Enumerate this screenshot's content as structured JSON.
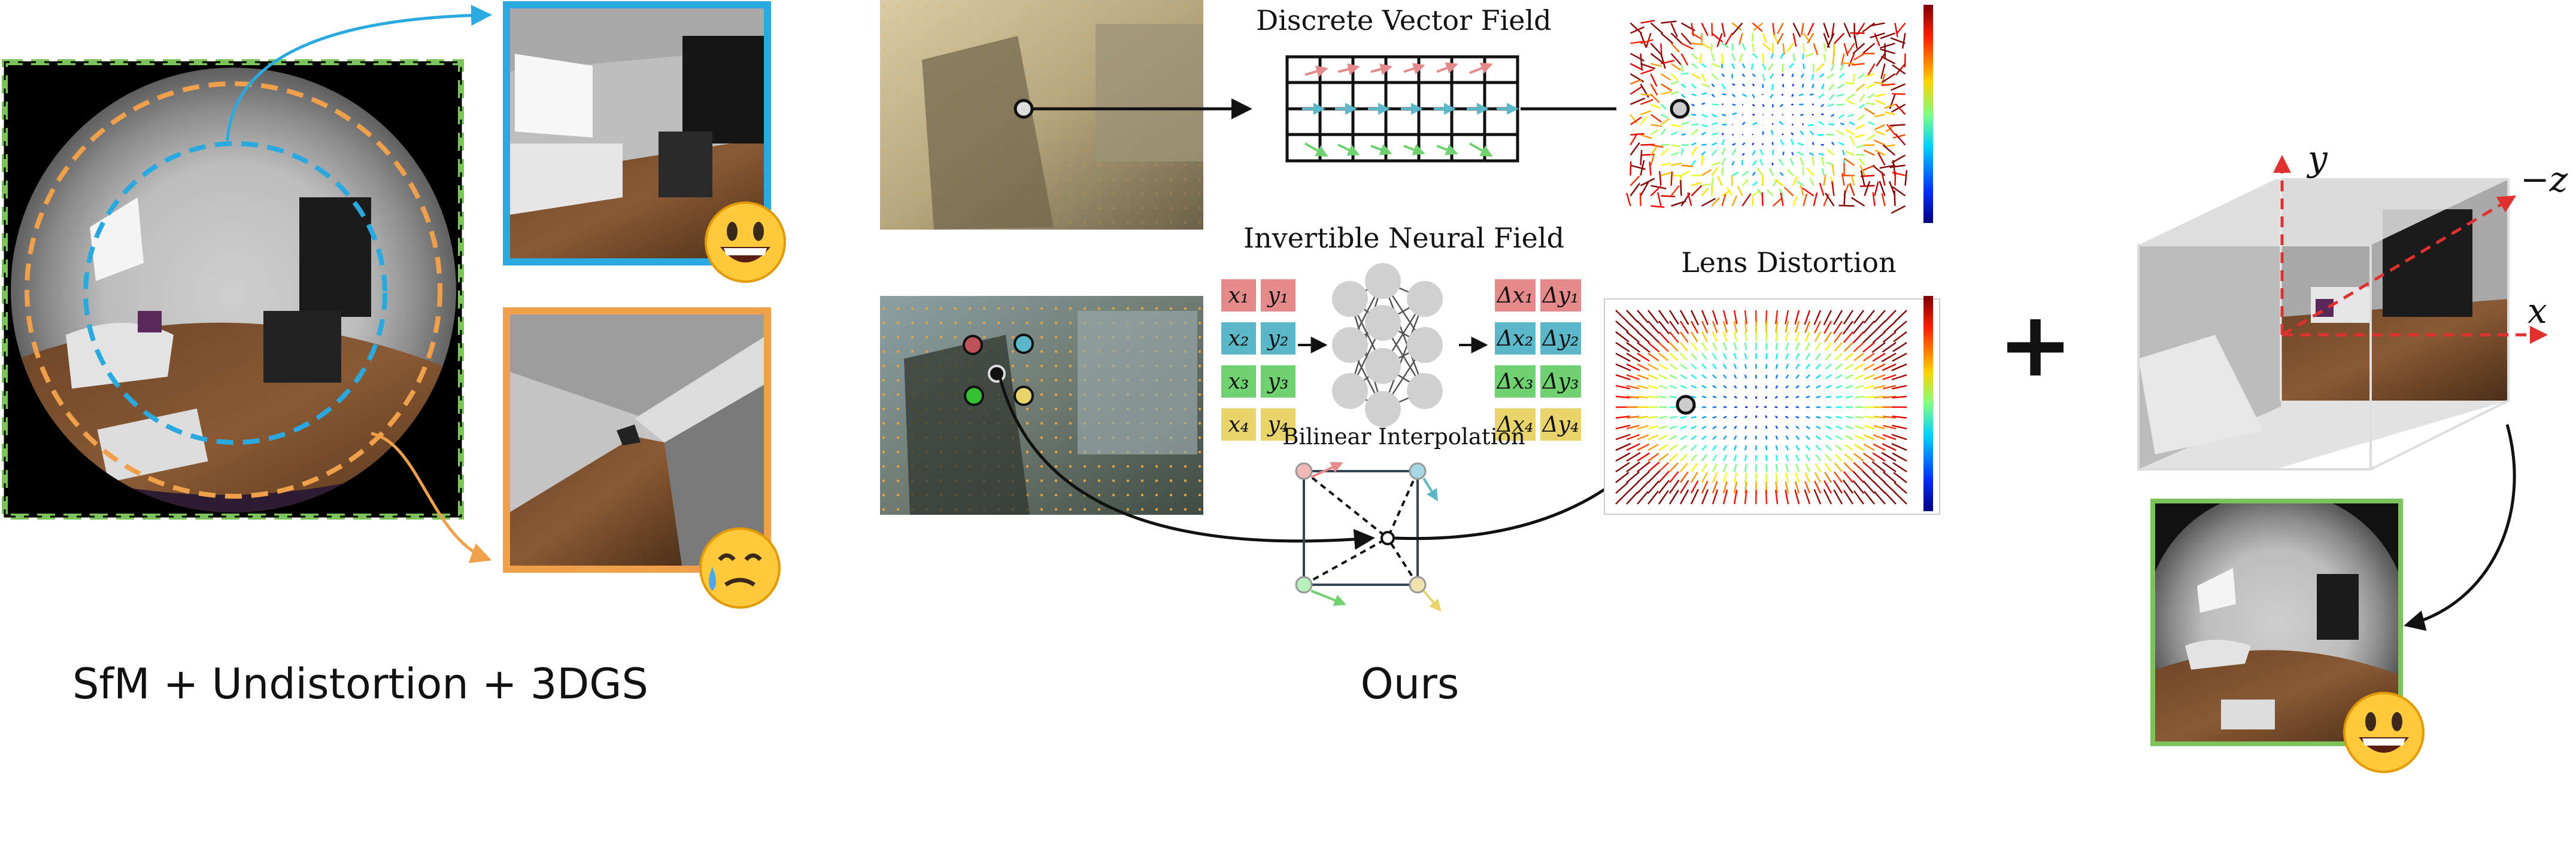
{
  "captions": {
    "baseline": "SfM + Undistortion + 3DGS",
    "ours": "Ours"
  },
  "labels": {
    "discrete_vector_field": "Discrete Vector Field",
    "invertible_neural_field": "Invertible Neural Field",
    "lens_distortion": "Lens Distortion",
    "bilinear_interpolation": "Bilinear Interpolation",
    "plus_sign": "+"
  },
  "axes": {
    "y": "y",
    "neg_z": "−z",
    "x": "x"
  },
  "inputs": [
    {
      "a": "x₁",
      "b": "y₁",
      "color": "#e58a8a"
    },
    {
      "a": "x₂",
      "b": "y₂",
      "color": "#5bb8c8"
    },
    {
      "a": "x₃",
      "b": "y₃",
      "color": "#6fd16f"
    },
    {
      "a": "x₄",
      "b": "y₄",
      "color": "#e8d46a"
    }
  ],
  "outputs": [
    {
      "a": "Δx₁",
      "b": "Δy₁",
      "color": "#e58a8a"
    },
    {
      "a": "Δx₂",
      "b": "Δy₂",
      "color": "#5bb8c8"
    },
    {
      "a": "Δx₃",
      "b": "Δy₃",
      "color": "#6fd16f"
    },
    {
      "a": "Δx₄",
      "b": "Δy₄",
      "color": "#e8d46a"
    }
  ],
  "icons": {
    "happy": "grinning-face-icon",
    "sad": "sad-but-relieved-face-icon"
  },
  "colors": {
    "green_frame": "#7cc35b",
    "blue_frame": "#2aa9e0",
    "orange_frame": "#f0a04b",
    "axis_red": "#e03030"
  }
}
